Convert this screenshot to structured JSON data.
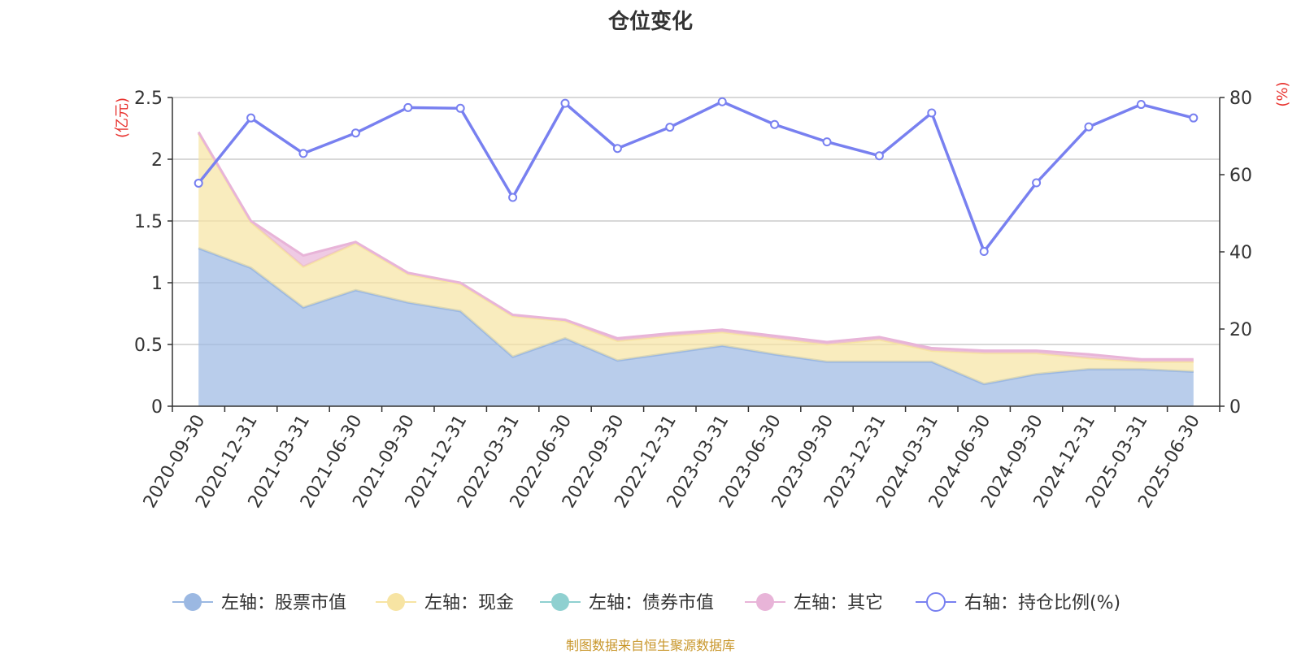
{
  "chart_data": {
    "type": "area",
    "title": "仓位变化",
    "categories": [
      "2020-09-30",
      "2020-12-31",
      "2021-03-31",
      "2021-06-30",
      "2021-09-30",
      "2021-12-31",
      "2022-03-31",
      "2022-06-30",
      "2022-09-30",
      "2022-12-31",
      "2023-03-31",
      "2023-06-30",
      "2023-09-30",
      "2023-12-31",
      "2024-03-31",
      "2024-06-30",
      "2024-09-30",
      "2024-12-31",
      "2025-03-31",
      "2025-06-30"
    ],
    "left_axis": {
      "label": "(亿元)",
      "ylim": [
        0,
        2.5
      ],
      "ticks": [
        "0",
        "0.5",
        "1",
        "1.5",
        "2",
        "2.5"
      ]
    },
    "right_axis": {
      "label": "(%)",
      "ylim": [
        0,
        80
      ],
      "ticks": [
        "0",
        "20",
        "40",
        "60",
        "80"
      ]
    },
    "grid": true,
    "legend_placement": "bottom",
    "series": [
      {
        "name": "左轴：股票市值",
        "axis": "left",
        "kind": "stacked-area",
        "color": "#9bb8e2",
        "values": [
          1.28,
          1.12,
          0.8,
          0.94,
          0.84,
          0.77,
          0.4,
          0.55,
          0.37,
          0.43,
          0.49,
          0.42,
          0.36,
          0.36,
          0.36,
          0.18,
          0.26,
          0.3,
          0.3,
          0.28
        ]
      },
      {
        "name": "左轴：现金",
        "axis": "left",
        "kind": "stacked-area",
        "color": "#f7e4a3",
        "values": [
          0.93,
          0.37,
          0.33,
          0.38,
          0.23,
          0.22,
          0.33,
          0.14,
          0.16,
          0.14,
          0.11,
          0.13,
          0.14,
          0.18,
          0.09,
          0.25,
          0.17,
          0.09,
          0.06,
          0.08
        ]
      },
      {
        "name": "左轴：债券市值",
        "axis": "left",
        "kind": "stacked-area",
        "color": "#8fd0d0",
        "values": [
          0,
          0,
          0,
          0,
          0,
          0,
          0,
          0,
          0,
          0,
          0,
          0,
          0,
          0,
          0,
          0,
          0,
          0,
          0,
          0
        ]
      },
      {
        "name": "左轴：其它",
        "axis": "left",
        "kind": "stacked-area",
        "color": "#e8b4d8",
        "values": [
          0.01,
          0.01,
          0.09,
          0.01,
          0.01,
          0.01,
          0.01,
          0.01,
          0.02,
          0.02,
          0.02,
          0.02,
          0.02,
          0.02,
          0.02,
          0.02,
          0.02,
          0.03,
          0.02,
          0.02
        ]
      },
      {
        "name": "右轴：持仓比例(%)",
        "axis": "right",
        "kind": "line",
        "color": "#7880f0",
        "values": [
          57.8,
          74.7,
          65.5,
          70.8,
          77.4,
          77.2,
          54.1,
          78.5,
          66.8,
          72.3,
          78.9,
          73.0,
          68.5,
          64.9,
          76.0,
          40.1,
          57.9,
          72.4,
          78.2,
          74.7
        ]
      }
    ]
  },
  "footer": {
    "source": "制图数据来自恒生聚源数据库"
  },
  "colors": {
    "axis_label_red": "#e8322e",
    "axis": "#333333",
    "grid": "#cccccc",
    "background": "#ffffff"
  }
}
